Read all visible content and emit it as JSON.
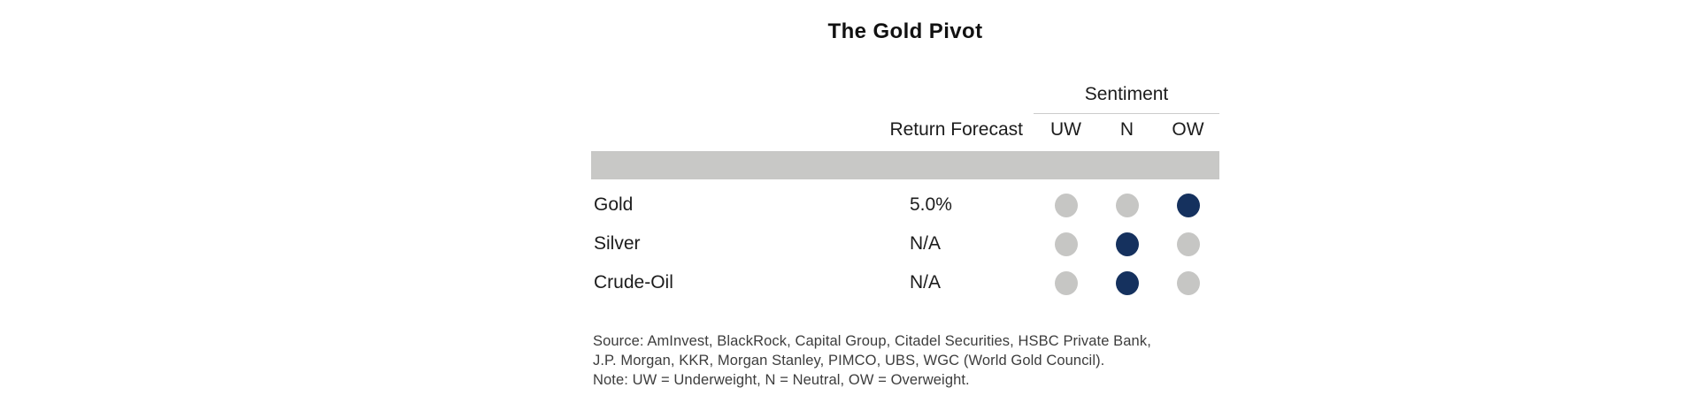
{
  "chart_data": {
    "type": "table",
    "title": "The Gold Pivot",
    "sentiment_group_label": "Sentiment",
    "return_forecast_label": "Return Forecast",
    "sentiment_columns": [
      "UW",
      "N",
      "OW"
    ],
    "rows": [
      {
        "label": "Gold",
        "return_forecast": "5.0%",
        "sentiment": "OW"
      },
      {
        "label": "Silver",
        "return_forecast": "N/A",
        "sentiment": "N"
      },
      {
        "label": "Crude-Oil",
        "return_forecast": "N/A",
        "sentiment": "N"
      }
    ],
    "legend_note": "dot grid: highlighted dot marks consensus sentiment per asset"
  },
  "footnotes": [
    "Source: AmInvest, BlackRock, Capital Group, Citadel Securities, HSBC Private Bank,",
    "J.P. Morgan, KKR, Morgan Stanley, PIMCO, UBS, WGC (World Gold Council).",
    "Note: UW = Underweight, N = Neutral, OW = Overweight."
  ],
  "colors": {
    "highlight": "#15315e",
    "inactive": "#c6c6c4",
    "band": "#c8c8c6",
    "rule": "#cccccc",
    "text": "#1c1c1c",
    "footnote_text": "#3d3d3d"
  }
}
